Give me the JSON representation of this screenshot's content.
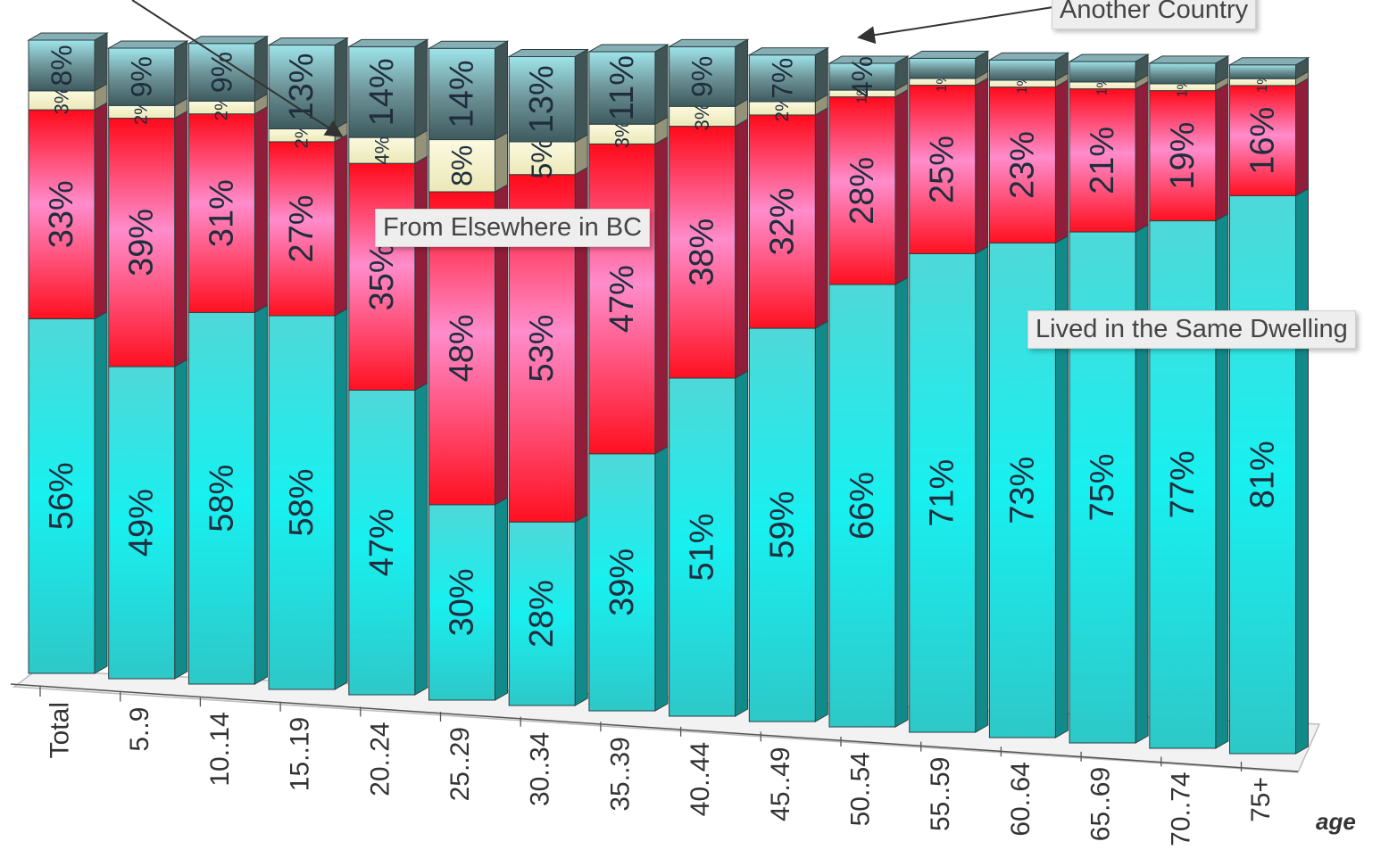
{
  "chart_data": {
    "type": "bar",
    "stacked": true,
    "percent_stacked": true,
    "three_d": true,
    "xlabel": "age",
    "ylabel": "",
    "ylim": [
      0,
      100
    ],
    "grid": false,
    "categories": [
      "Total",
      "5..9",
      "10..14",
      "15..19",
      "20..24",
      "25..29",
      "30..34",
      "35..39",
      "40..44",
      "45..49",
      "50..54",
      "55..59",
      "60..64",
      "65..69",
      "70..74",
      "75+"
    ],
    "series": [
      {
        "key": "same",
        "name": "Lived in the Same Dwelling",
        "color": "#20e6e6",
        "values": [
          56,
          49,
          58,
          58,
          47,
          30,
          28,
          39,
          51,
          59,
          66,
          71,
          73,
          75,
          77,
          81
        ],
        "labels": [
          "56%",
          "49%",
          "58%",
          "58%",
          "47%",
          "30%",
          "28%",
          "39%",
          "51%",
          "59%",
          "66%",
          "71%",
          "73%",
          "75%",
          "77%",
          "81%"
        ]
      },
      {
        "key": "bc",
        "name": "From Elsewhere in BC",
        "color": "#f03060",
        "values": [
          33,
          39,
          31,
          27,
          35,
          48,
          53,
          47,
          38,
          32,
          28,
          25,
          23,
          21,
          19,
          16
        ],
        "labels": [
          "33%",
          "39%",
          "31%",
          "27%",
          "35%",
          "48%",
          "53%",
          "47%",
          "38%",
          "32%",
          "28%",
          "25%",
          "23%",
          "21%",
          "19%",
          "16%"
        ]
      },
      {
        "key": "canada",
        "name": "",
        "color": "#f6f3c8",
        "values": [
          3,
          2,
          2,
          2,
          4,
          8,
          5,
          3,
          3,
          2,
          1,
          1,
          1,
          1,
          1,
          1
        ],
        "labels": [
          "3%",
          "2%",
          "2%",
          "2%",
          "4%",
          "8%",
          "5%",
          "3%",
          "3%",
          "2%",
          "1%",
          "1%",
          "1%",
          "1%",
          "1%",
          "1%"
        ]
      },
      {
        "key": "country",
        "name": "Another Country",
        "color": "#6a8c90",
        "values": [
          8,
          9,
          9,
          13,
          14,
          14,
          13,
          11,
          9,
          7,
          4,
          3,
          3,
          3,
          3,
          2
        ],
        "labels": [
          "8%",
          "9%",
          "9%",
          "13%",
          "14%",
          "14%",
          "13%",
          "11%",
          "9%",
          "7%",
          "4%",
          "",
          "",
          "",
          "",
          ""
        ]
      }
    ],
    "annotations": [
      {
        "key": "bc",
        "text": "From Elsewhere in BC"
      },
      {
        "key": "same",
        "text": "Lived in the Same Dwelling"
      },
      {
        "key": "country",
        "text": "Another Country"
      }
    ]
  }
}
